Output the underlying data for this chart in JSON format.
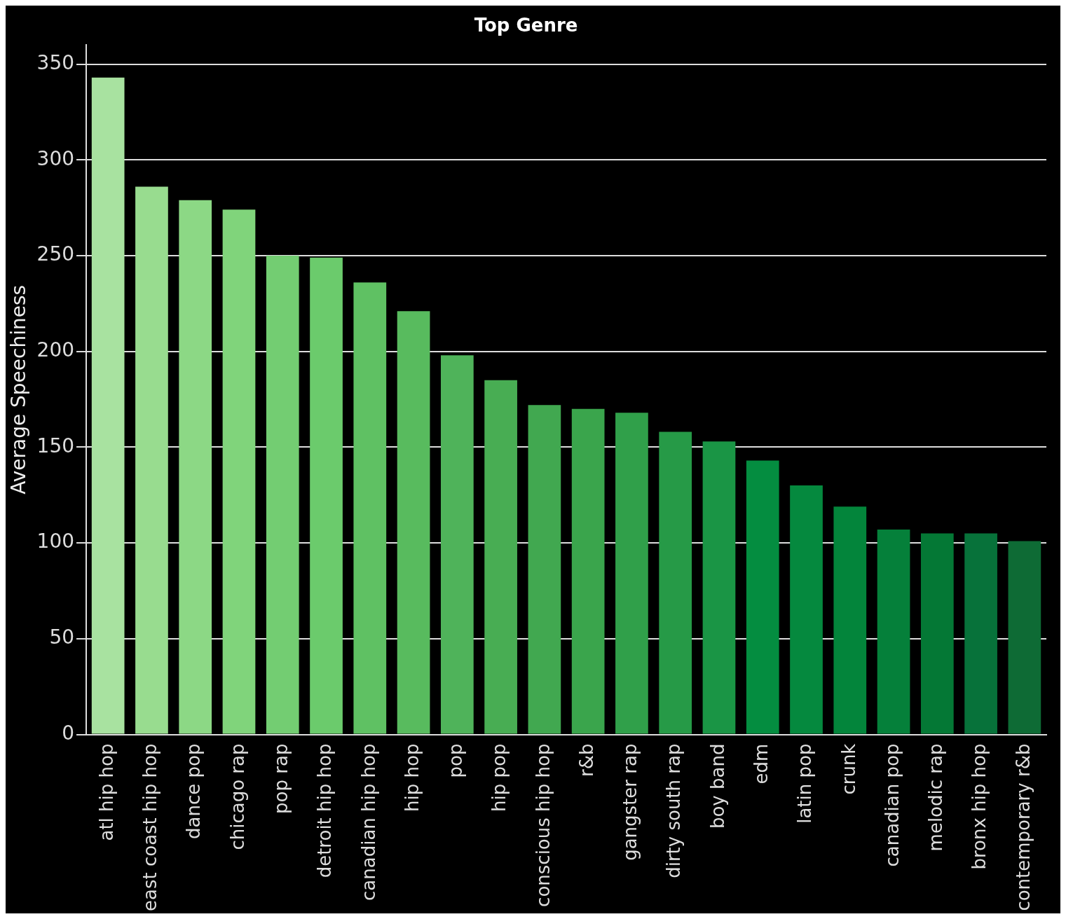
{
  "chart_data": {
    "type": "bar",
    "title": "Top Genre",
    "ylabel": "Average Speechiness",
    "categories": [
      "atl hip hop",
      "east coast hip hop",
      "dance pop",
      "chicago rap",
      "pop rap",
      "detroit hip hop",
      "canadian hip hop",
      "hip hop",
      "pop",
      "hip pop",
      "conscious hip hop",
      "r&b",
      "gangster rap",
      "dirty south rap",
      "boy band",
      "edm",
      "latin pop",
      "crunk",
      "canadian pop",
      "melodic rap",
      "bronx hip hop",
      "contemporary r&b"
    ],
    "values": [
      343,
      286,
      279,
      274,
      250,
      249,
      236,
      221,
      198,
      185,
      172,
      170,
      168,
      158,
      153,
      143,
      130,
      119,
      107,
      105,
      105,
      101
    ],
    "colors": [
      "#a8e2a0",
      "#98dc8f",
      "#8cd885",
      "#80d47b",
      "#73cd72",
      "#6bcb6c",
      "#5fc163",
      "#58bb5e",
      "#4fb35a",
      "#48ad53",
      "#41a850",
      "#3aa54c",
      "#30a04a",
      "#269a47",
      "#1a9545",
      "#048d40",
      "#05893e",
      "#03853b",
      "#05803a",
      "#047835",
      "#07723a",
      "#0e6b35"
    ],
    "ylim": [
      0,
      360
    ],
    "yticks": [
      0,
      50,
      100,
      150,
      200,
      250,
      300,
      350
    ],
    "grid": "y",
    "legend": false
  }
}
